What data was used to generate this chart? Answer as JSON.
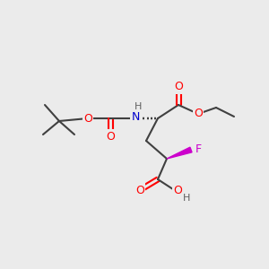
{
  "bg_color": "#ebebeb",
  "bond_color": "#404040",
  "bond_lw": 1.5,
  "atom_colors": {
    "O": "#ff0000",
    "N": "#0000cc",
    "F": "#cc00cc",
    "C": "#404040",
    "H": "#606060"
  },
  "font_size": 9,
  "font_size_small": 8
}
